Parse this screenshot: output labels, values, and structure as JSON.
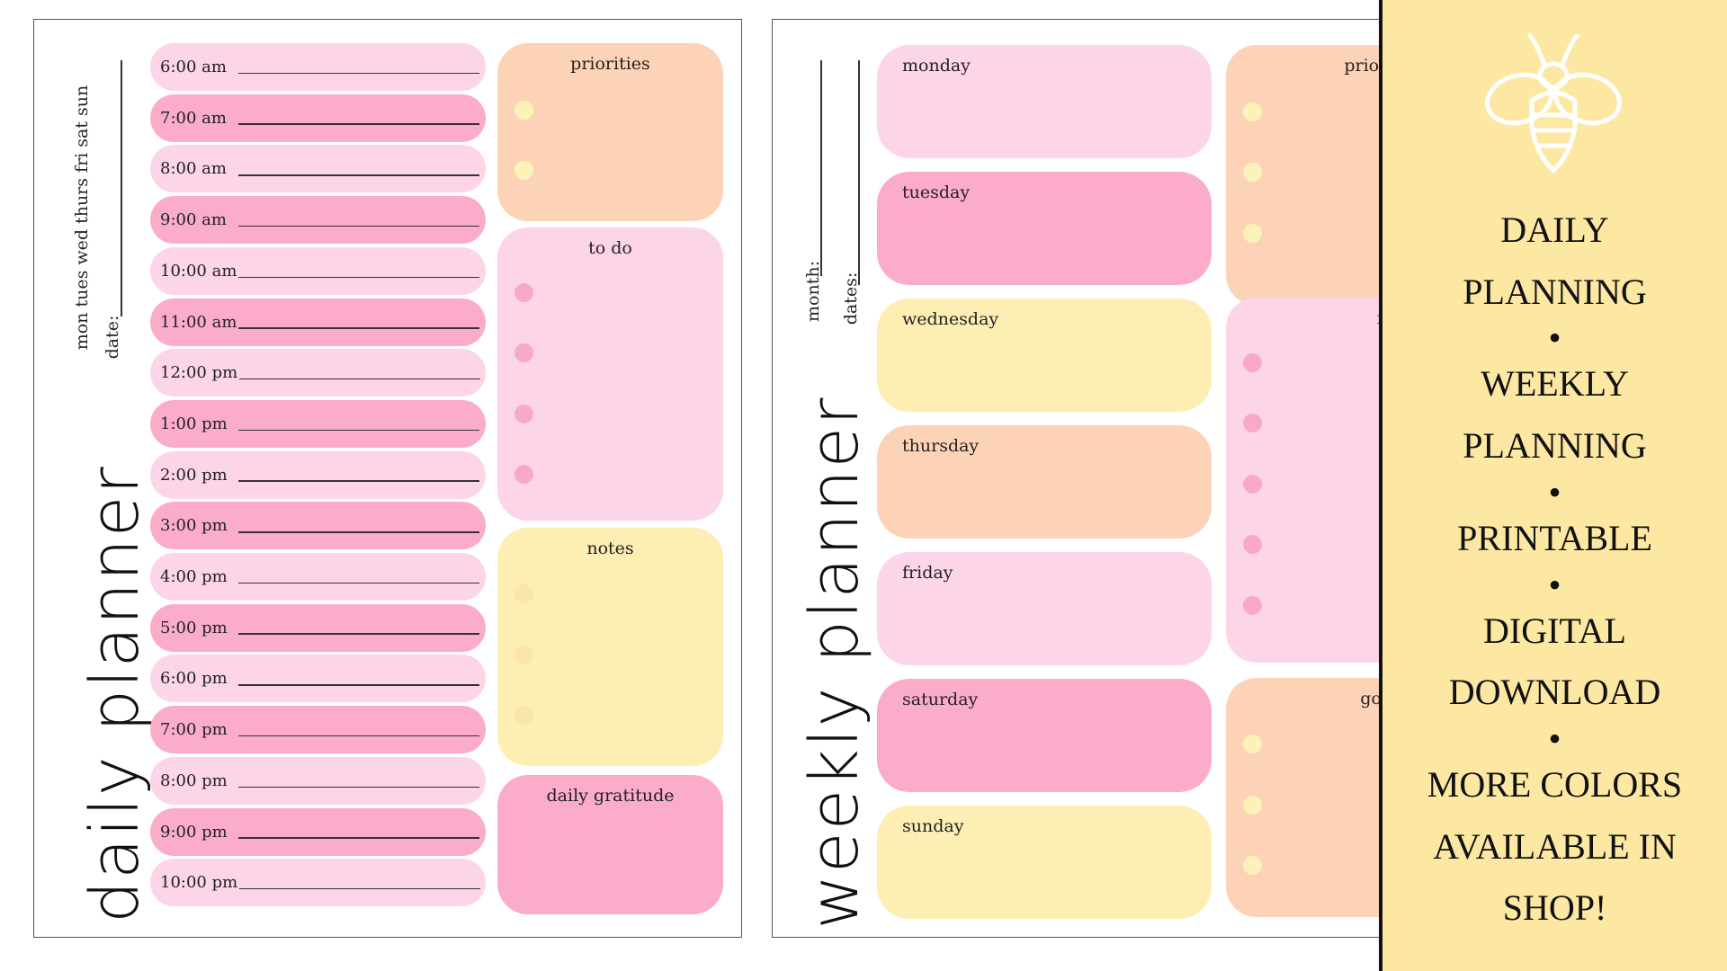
{
  "daily": {
    "title": "daily planner",
    "days_line": "mon   tues   wed   thurs   fri   sat   sun",
    "date_label": "date:",
    "times": [
      "6:00 am",
      "7:00 am",
      "8:00 am",
      "9:00 am",
      "10:00 am",
      "11:00 am",
      "12:00 pm",
      "1:00 pm",
      "2:00 pm",
      "3:00 pm",
      "4:00 pm",
      "5:00 pm",
      "6:00 pm",
      "7:00 pm",
      "8:00 pm",
      "9:00 pm",
      "10:00 pm"
    ],
    "priorities_label": "priorities",
    "todo_label": "to do",
    "notes_label": "notes",
    "gratitude_label": "daily gratitude"
  },
  "weekly": {
    "title": "weekly planner",
    "month_label": "month:",
    "dates_label": "dates:",
    "days": [
      "monday",
      "tuesday",
      "wednesday",
      "thursday",
      "friday",
      "saturday",
      "sunday"
    ],
    "priorities_label": "priorities",
    "notes_label": "notes",
    "goals_label": "goals"
  },
  "banner": {
    "lines": [
      "DAILY",
      "PLANNING",
      "•",
      "WEEKLY",
      "PLANNING",
      "•",
      "PRINTABLE",
      "•",
      "DIGITAL",
      "DOWNLOAD",
      "•",
      "MORE COLORS",
      "AVAILABLE IN",
      "SHOP!"
    ],
    "icon": "bee-icon"
  },
  "colors": {
    "pink_light": "#fdd5e8",
    "pink_dark": "#fbacca",
    "peach": "#fdd3b8",
    "yellow": "#fdeeb3",
    "banner_yellow": "#fde8a3"
  }
}
